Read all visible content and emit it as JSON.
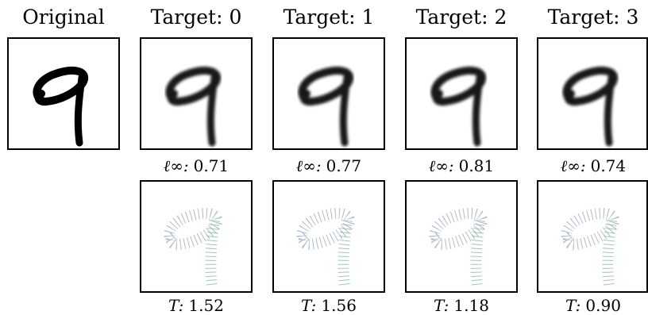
{
  "original_title": "Original",
  "columns": [
    {
      "title": "Target: 0",
      "linf": {
        "symbol": "ℓ∞:",
        "value": "0.71"
      },
      "t": {
        "symbol": "T:",
        "value": "1.52"
      }
    },
    {
      "title": "Target: 1",
      "linf": {
        "symbol": "ℓ∞:",
        "value": "0.77"
      },
      "t": {
        "symbol": "T:",
        "value": "1.56"
      }
    },
    {
      "title": "Target: 2",
      "linf": {
        "symbol": "ℓ∞:",
        "value": "0.81"
      },
      "t": {
        "symbol": "T:",
        "value": "1.18"
      }
    },
    {
      "title": "Target: 3",
      "linf": {
        "symbol": "ℓ∞:",
        "value": "0.74"
      },
      "t": {
        "symbol": "T:",
        "value": "0.90"
      }
    }
  ]
}
